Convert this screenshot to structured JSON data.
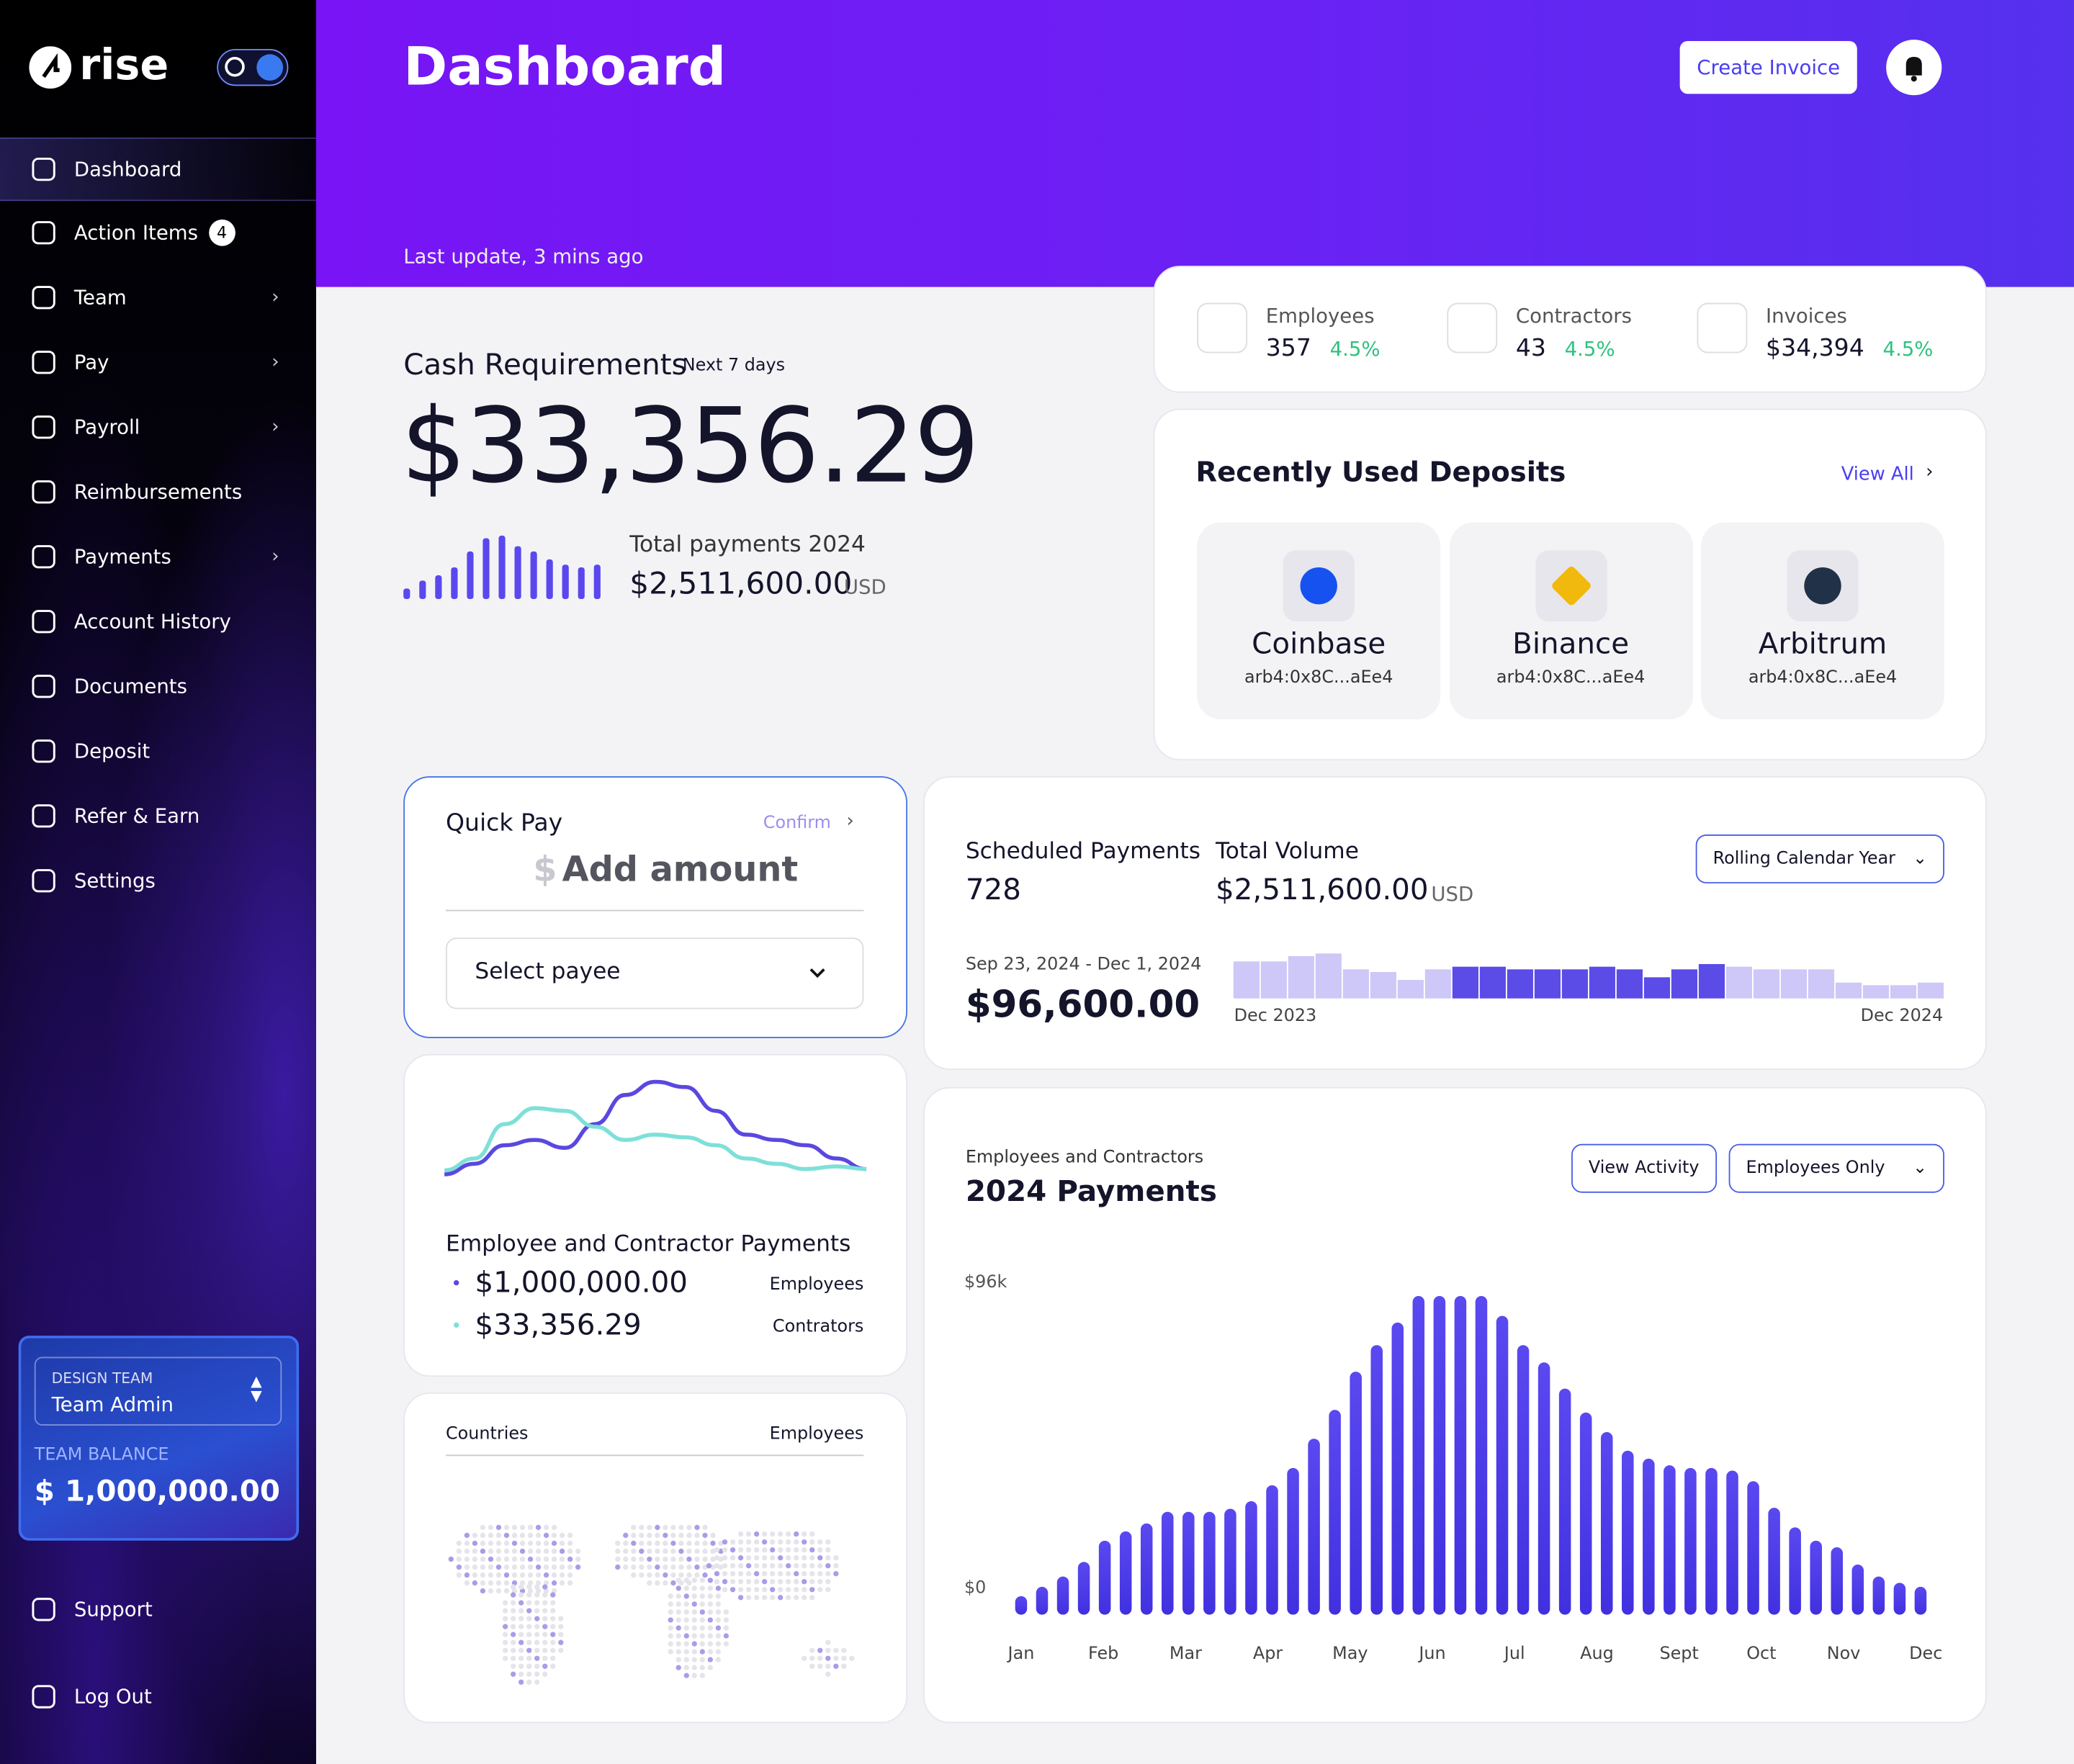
{
  "sidebar": {
    "logo": "rise",
    "nav": [
      {
        "label": "Dashboard"
      },
      {
        "label": "Action Items",
        "badge": 4
      },
      {
        "label": "Team",
        "submenu": true
      },
      {
        "label": "Pay",
        "submenu": true
      },
      {
        "label": "Payroll",
        "submenu": true
      },
      {
        "label": "Reimbursements"
      },
      {
        "label": "Payments",
        "submenu": true
      },
      {
        "label": "Account History"
      },
      {
        "label": "Documents"
      },
      {
        "label": "Deposit"
      },
      {
        "label": "Refer & Earn"
      },
      {
        "label": "Settings"
      }
    ],
    "team": {
      "name": "DESIGN TEAM",
      "role": "Team Admin",
      "balance_label": "TEAM BALANCE",
      "balance": "$ 1,000,000.00"
    },
    "footer": [
      "Support",
      "Log Out"
    ]
  },
  "header": {
    "title": "Dashboard",
    "last_update": "Last update, 3 mins ago",
    "create_button": "Create Invoice"
  },
  "stats": [
    {
      "label": "Employees",
      "value": "357",
      "change": "4.5%"
    },
    {
      "label": "Contractors",
      "value": "43",
      "change": "4.5%"
    },
    {
      "label": "Invoices",
      "value": "$34,394",
      "change": "4.5%"
    }
  ],
  "cash": {
    "title": "Cash Requirements",
    "period": "Next 7 days",
    "amount": "$33,356.29",
    "total_label": "Total payments 2024",
    "total": "$2,511,600.00",
    "currency": "USD",
    "sparkline": {
      "type": "bar",
      "color": "#5a48ee",
      "ylim": [
        0,
        50
      ],
      "values": [
        8,
        14,
        18,
        24,
        36,
        46,
        48,
        40,
        36,
        30,
        26,
        24,
        26
      ]
    }
  },
  "deposits": {
    "title": "Recently Used Deposits",
    "view_all": "View All",
    "items": [
      {
        "name": "Coinbase",
        "address": "arb4:0x8C...aEe4"
      },
      {
        "name": "Binance",
        "address": "arb4:0x8C...aEe4"
      },
      {
        "name": "Arbitrum",
        "address": "arb4:0x8C...aEe4"
      }
    ]
  },
  "quick_pay": {
    "title": "Quick Pay",
    "confirm": "Confirm",
    "symbol": "$",
    "placeholder": "Add amount",
    "payee": "Select payee"
  },
  "scheduled": {
    "label": "Scheduled Payments",
    "count": "728",
    "volume_label": "Total Volume",
    "volume": "$2,511,600.00",
    "currency": "USD",
    "dropdown": "Rolling Calendar Year",
    "range": "Sep 23, 2024 - Dec 1, 2024",
    "range_amount": "$96,600.00",
    "chart": {
      "type": "bar",
      "ylim": [
        0,
        40
      ],
      "start_label": "Dec 2023",
      "end_label": "Dec 2024",
      "values": [
        28,
        28,
        32,
        34,
        22,
        20,
        14,
        22,
        24,
        24,
        22,
        22,
        22,
        24,
        22,
        16,
        22,
        26,
        24,
        22,
        22,
        22,
        12,
        10,
        10,
        12
      ],
      "colors": [
        "#cdc8f7",
        "#cdc8f7",
        "#cdc8f7",
        "#cdc8f7",
        "#cdc8f7",
        "#cdc8f7",
        "#cdc8f7",
        "#cdc8f7",
        "#5b4ce8",
        "#5b4ce8",
        "#5b4ce8",
        "#5b4ce8",
        "#5b4ce8",
        "#5b4ce8",
        "#5b4ce8",
        "#5b4ce8",
        "#5b4ce8",
        "#5b4ce8",
        "#cdc8f7",
        "#cdc8f7",
        "#cdc8f7",
        "#cdc8f7",
        "#cdc8f7",
        "#cdc8f7",
        "#cdc8f7",
        "#cdc8f7"
      ]
    }
  },
  "ec_payments": {
    "title": "Employee and Contractor Payments",
    "chart": {
      "type": "line",
      "ylim": [
        0,
        90
      ],
      "series": [
        {
          "name": "Employees",
          "color": "#5a48e0",
          "values": [
            12,
            20,
            34,
            38,
            32,
            50,
            72,
            82,
            78,
            60,
            42,
            38,
            34,
            24,
            16
          ]
        },
        {
          "name": "Contrators",
          "color": "#7ee0d8",
          "values": [
            15,
            24,
            50,
            62,
            60,
            48,
            38,
            42,
            40,
            34,
            24,
            20,
            16,
            18,
            16
          ]
        }
      ]
    },
    "totals": [
      "$1,000,000.00",
      "$33,356.29"
    ]
  },
  "countries": {
    "label": "Countries",
    "column": "Employees"
  },
  "payments_2024": {
    "overline": "Employees and Contractors",
    "title": "2024 Payments",
    "button": "View Activity",
    "dropdown": "Employees Only",
    "chart": {
      "type": "bar",
      "color": "#5a48f0",
      "ylim": [
        0,
        96000
      ],
      "yticks": [
        {
          "value": 96000,
          "label": "$96k"
        },
        {
          "value": 0,
          "label": "$0"
        }
      ],
      "month_labels": [
        "Jan",
        "Feb",
        "Mar",
        "Apr",
        "May",
        "Jun",
        "Jul",
        "Aug",
        "Sept",
        "Oct",
        "Nov",
        "Dec"
      ],
      "values": [
        5600,
        8400,
        11500,
        15900,
        22300,
        25100,
        27500,
        31000,
        31000,
        31000,
        31900,
        34200,
        39000,
        44200,
        53000,
        61700,
        73200,
        81200,
        88000,
        96000,
        96000,
        96000,
        96000,
        90000,
        81200,
        76000,
        68100,
        60900,
        55000,
        49400,
        47000,
        45000,
        44200,
        44200,
        43400,
        40200,
        32200,
        26300,
        22300,
        20300,
        15100,
        11500,
        9600,
        8400
      ]
    }
  }
}
